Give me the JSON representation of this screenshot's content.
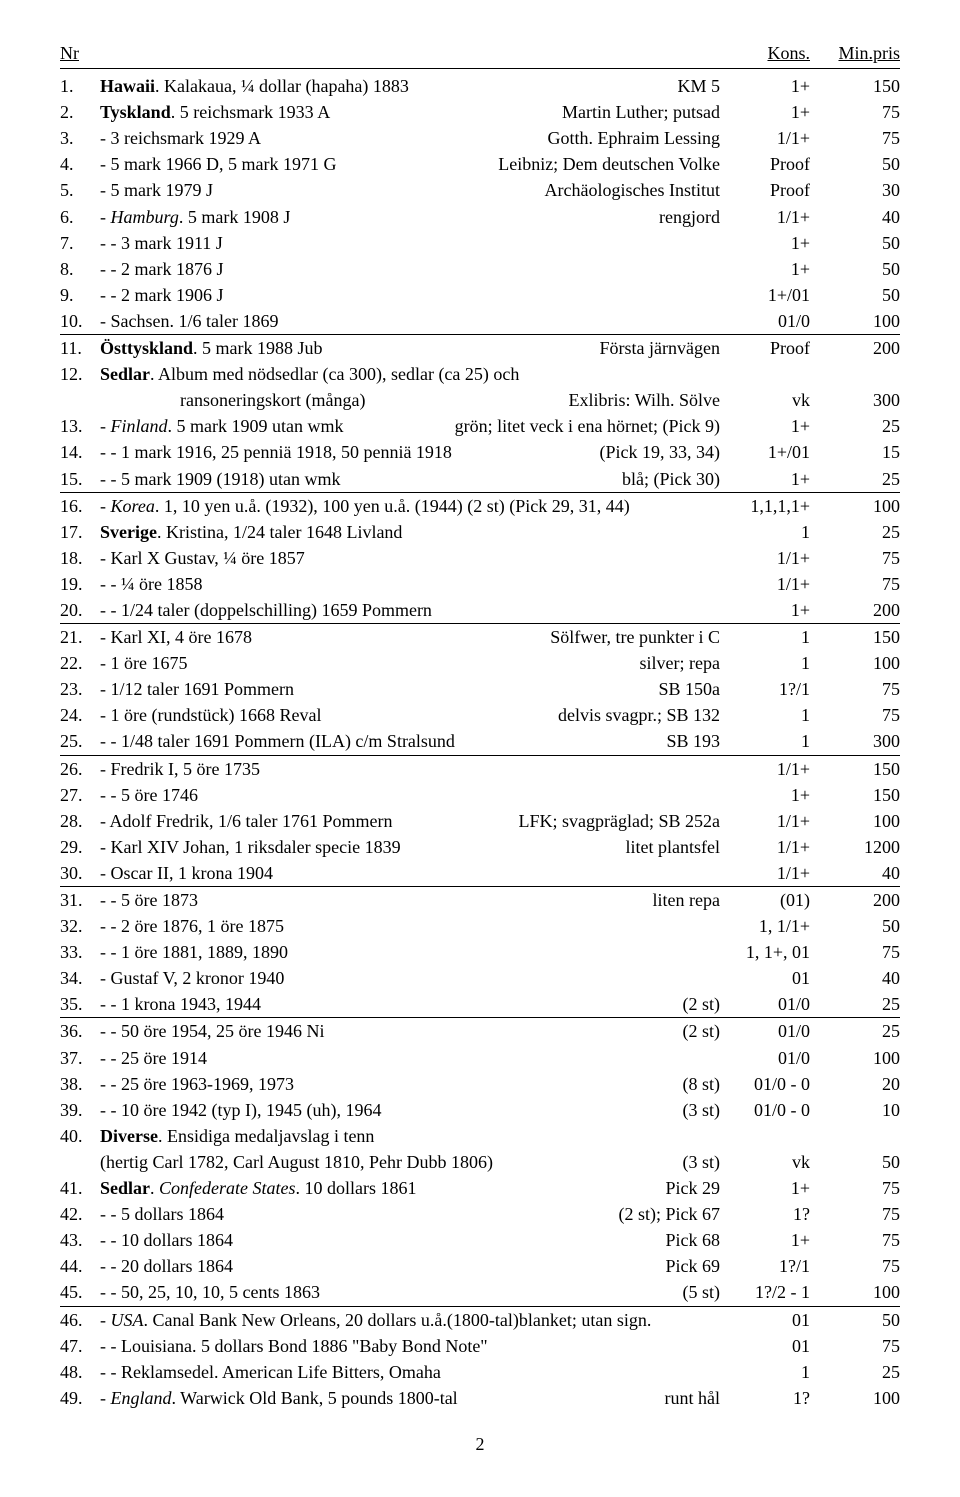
{
  "header": {
    "nr": "Nr",
    "kons": "Kons.",
    "min": "Min.pris"
  },
  "page_number": "2",
  "rows": [
    {
      "n": "1.",
      "left": "<b>Hawaii</b>. Kalakaua, ¼ dollar (hapaha) 1883",
      "right": "KM 5",
      "kons": "1+",
      "min": "150"
    },
    {
      "n": "2.",
      "left": "<b>Tyskland</b>. 5 reichsmark 1933 A",
      "right": "Martin Luther; putsad",
      "kons": "1+",
      "min": "75"
    },
    {
      "n": "3.",
      "left": "- 3 reichsmark 1929 A",
      "right": "Gotth. Ephraim Lessing",
      "kons": "1/1+",
      "min": "75"
    },
    {
      "n": "4.",
      "left": "- 5 mark 1966 D, 5 mark 1971 G",
      "right": "Leibniz; Dem deutschen Volke",
      "kons": "Proof",
      "min": "50"
    },
    {
      "n": "5.",
      "left": "- 5 mark 1979 J",
      "right": "Archäologisches Institut",
      "kons": "Proof",
      "min": "30"
    },
    {
      "n": "6.",
      "left": "- <i>Hamburg</i>. 5 mark 1908 J",
      "right": "rengjord",
      "kons": "1/1+",
      "min": "40"
    },
    {
      "n": "7.",
      "left": "- - 3 mark 1911 J",
      "right": "",
      "kons": "1+",
      "min": "50"
    },
    {
      "n": "8.",
      "left": "- - 2 mark 1876 J",
      "right": "",
      "kons": "1+",
      "min": "50"
    },
    {
      "n": "9.",
      "left": "- - 2 mark 1906 J",
      "right": "",
      "kons": "1+/01",
      "min": "50"
    },
    {
      "n": "10.",
      "left": "- Sachsen. 1/6 taler 1869",
      "right": "",
      "kons": "01/0",
      "min": "100",
      "sep": true
    },
    {
      "n": "11.",
      "left": "<b>Östtyskland</b>. 5 mark 1988 Jub",
      "right": "Första järnvägen",
      "kons": "Proof",
      "min": "200"
    },
    {
      "n": "12.",
      "left": "<b>Sedlar</b>. Album med nödsedlar (ca 300), sedlar (ca 25) och",
      "right": "",
      "kons": "",
      "min": ""
    },
    {
      "cont": true,
      "left": "ransoneringskort (många)",
      "right": "Exlibris: Wilh. Sölve",
      "kons": "vk",
      "min": "300"
    },
    {
      "n": "13.",
      "left": "- <i>Finland</i>. 5 mark 1909 utan wmk",
      "right": "grön; litet veck i ena hörnet; (Pick 9)",
      "kons": "1+",
      "min": "25"
    },
    {
      "n": "14.",
      "left": "- - 1 mark 1916, 25 penniä 1918, 50 penniä 1918",
      "right": "(Pick 19, 33, 34)",
      "kons": "1+/01",
      "min": "15"
    },
    {
      "n": "15.",
      "left": "- - 5 mark 1909 (1918) utan wmk",
      "right": "blå; (Pick 30)",
      "kons": "1+",
      "min": "25",
      "sep": true
    },
    {
      "n": "16.",
      "left": "- <i>Korea</i>. 1, 10 yen u.å. (1932), 100 yen u.å. (1944) (2 st) (Pick 29, 31, 44)",
      "right": "",
      "kons": "1,1,1,1+",
      "min": "100"
    },
    {
      "n": "17.",
      "left": "<b>Sverige</b>. Kristina, 1/24 taler 1648 Livland",
      "right": "",
      "kons": "1",
      "min": "25"
    },
    {
      "n": "18.",
      "left": "- Karl X Gustav, ¼ öre 1857",
      "right": "",
      "kons": "1/1+",
      "min": "75"
    },
    {
      "n": "19.",
      "left": "- - ¼ öre 1858",
      "right": "",
      "kons": "1/1+",
      "min": "75"
    },
    {
      "n": "20.",
      "left": "- - 1/24 taler (doppelschilling) 1659 Pommern",
      "right": "",
      "kons": "1+",
      "min": "200",
      "sep": true
    },
    {
      "n": "21.",
      "left": "- Karl XI, 4 öre 1678",
      "right": "Sölfwer, tre punkter i C",
      "kons": "1",
      "min": "150"
    },
    {
      "n": "22.",
      "left": "- 1 öre 1675",
      "right": "silver; repa",
      "kons": "1",
      "min": "100"
    },
    {
      "n": "23.",
      "left": "- 1/12 taler 1691 Pommern",
      "right": "SB 150a",
      "kons": "1?/1",
      "min": "75"
    },
    {
      "n": "24.",
      "left": "- 1 öre (rundstück) 1668 Reval",
      "right": "delvis svagpr.; SB 132",
      "kons": "1",
      "min": "75"
    },
    {
      "n": "25.",
      "left": "- - 1/48 taler 1691 Pommern (ILA) c/m Stralsund",
      "right": "SB 193",
      "kons": "1",
      "min": "300",
      "sep": true
    },
    {
      "n": "26.",
      "left": "- Fredrik I, 5 öre 1735",
      "right": "",
      "kons": "1/1+",
      "min": "150"
    },
    {
      "n": "27.",
      "left": "- - 5 öre 1746",
      "right": "",
      "kons": "1+",
      "min": "150"
    },
    {
      "n": "28.",
      "left": "- Adolf Fredrik, 1/6 taler 1761 Pommern",
      "right": "LFK; svagpräglad; SB 252a",
      "kons": "1/1+",
      "min": "100"
    },
    {
      "n": "29.",
      "left": "- Karl XIV Johan, 1 riksdaler specie 1839",
      "right": "litet plantsfel",
      "kons": "1/1+",
      "min": "1200"
    },
    {
      "n": "30.",
      "left": "- Oscar II, 1 krona 1904",
      "right": "",
      "kons": "1/1+",
      "min": "40",
      "sep": true
    },
    {
      "n": "31.",
      "left": "- - 5 öre 1873",
      "right": "liten repa",
      "kons": "(01)",
      "min": "200"
    },
    {
      "n": "32.",
      "left": "- - 2 öre 1876, 1 öre 1875",
      "right": "",
      "kons": "1, 1/1+",
      "min": "50"
    },
    {
      "n": "33.",
      "left": "- - 1 öre 1881, 1889, 1890",
      "right": "",
      "kons": "1, 1+, 01",
      "min": "75"
    },
    {
      "n": "34.",
      "left": "- Gustaf V, 2 kronor 1940",
      "right": "",
      "kons": "01",
      "min": "40"
    },
    {
      "n": "35.",
      "left": "- - 1 krona 1943, 1944",
      "right": "(2 st)",
      "kons": "01/0",
      "min": "25",
      "sep": true
    },
    {
      "n": "36.",
      "left": "- - 50 öre 1954, 25 öre 1946 Ni",
      "right": "(2 st)",
      "kons": "01/0",
      "min": "25"
    },
    {
      "n": "37.",
      "left": "- - 25 öre 1914",
      "right": "",
      "kons": "01/0",
      "min": "100"
    },
    {
      "n": "38.",
      "left": "- - 25 öre 1963-1969, 1973",
      "right": "(8 st)",
      "kons": "01/0 - 0",
      "min": "20"
    },
    {
      "n": "39.",
      "left": "- - 10 öre 1942 (typ I), 1945 (uh), 1964",
      "right": "(3 st)",
      "kons": "01/0 - 0",
      "min": "10"
    },
    {
      "n": "40.",
      "left": "<b>Diverse</b>. Ensidiga medaljavslag i tenn",
      "right": "",
      "kons": "",
      "min": ""
    },
    {
      "cont": true,
      "left_plain": "(hertig Carl 1782, Carl August 1810, Pehr Dubb 1806)",
      "right": "(3 st)",
      "kons": "vk",
      "min": "50",
      "sep": true
    },
    {
      "n": "41.",
      "left": "<b>Sedlar</b>. <i>Confederate States</i>. 10 dollars 1861",
      "right": "Pick 29",
      "kons": "1+",
      "min": "75"
    },
    {
      "n": "42.",
      "left": "- - 5 dollars 1864",
      "right": "(2 st); Pick 67",
      "kons": "1?",
      "min": "75"
    },
    {
      "n": "43.",
      "left": "- - 10 dollars 1864",
      "right": "Pick 68",
      "kons": "1+",
      "min": "75"
    },
    {
      "n": "44.",
      "left": "- - 20 dollars 1864",
      "right": "Pick 69",
      "kons": "1?/1",
      "min": "75"
    },
    {
      "n": "45.",
      "left": "- - 50, 25, 10, 10, 5 cents 1863",
      "right": "(5 st)",
      "kons": "1?/2 - 1",
      "min": "100",
      "sep": true
    },
    {
      "n": "46.",
      "left": "- <i>USA</i>. Canal Bank New Orleans, 20 dollars u.å.(1800-tal)blanket; utan sign.",
      "right": "",
      "kons": "01",
      "min": "50"
    },
    {
      "n": "47.",
      "left": "- - Louisiana. 5 dollars Bond 1886 \"Baby Bond Note\"",
      "right": "",
      "kons": "01",
      "min": "75"
    },
    {
      "n": "48.",
      "left": "- - Reklamsedel. American Life Bitters, Omaha",
      "right": "",
      "kons": "1",
      "min": "25"
    },
    {
      "n": "49.",
      "left": "- <i>England</i>. Warwick Old Bank, 5 pounds 1800-tal",
      "right": "runt hål",
      "kons": "1?",
      "min": "100"
    }
  ]
}
